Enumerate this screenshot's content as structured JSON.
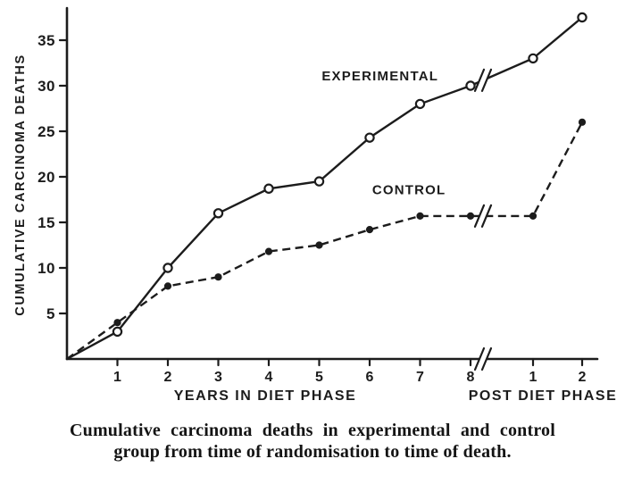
{
  "figure": {
    "background": "#ffffff",
    "ink": "#1c1c1c"
  },
  "chart_data": {
    "type": "line",
    "ylabel": "CUMULATIVE CARCINOMA DEATHS",
    "xlabel_diet": "YEARS IN DIET PHASE",
    "xlabel_post": "POST DIET PHASE",
    "ylim": [
      0,
      38
    ],
    "yticks": [
      5,
      10,
      15,
      20,
      25,
      30,
      35
    ],
    "diet_xticks": [
      1,
      2,
      3,
      4,
      5,
      6,
      7,
      8
    ],
    "post_xticks": [
      1,
      2
    ],
    "grid": false,
    "legend": "inline labels on curves",
    "axis_break": "double-slash break between diet year 8 and post year 1 on both curves and the x-axis",
    "series": [
      {
        "name": "EXPERIMENTAL",
        "line_style": "solid",
        "marker": "open-circle",
        "diet_x": [
          0,
          1,
          2,
          3,
          4,
          5,
          6,
          7,
          8
        ],
        "diet_y": [
          0,
          3,
          10,
          16,
          18.7,
          19.5,
          24.3,
          28,
          30
        ],
        "post_x": [
          1,
          2
        ],
        "post_y": [
          33,
          37.5
        ],
        "label_anchor": {
          "x_year": 5.05,
          "y_value": 30.6
        }
      },
      {
        "name": "CONTROL",
        "line_style": "dashed",
        "marker": "filled-circle",
        "diet_x": [
          0,
          1,
          2,
          3,
          4,
          5,
          6,
          7,
          8
        ],
        "diet_y": [
          0,
          4,
          8,
          9,
          11.8,
          12.5,
          14.2,
          15.7,
          15.7
        ],
        "post_x": [
          1,
          2
        ],
        "post_y": [
          15.7,
          26
        ],
        "label_anchor": {
          "x_year": 6.05,
          "y_value": 18.1
        }
      }
    ],
    "caption": {
      "line1": "Cumulative carcinoma deaths in experimental and control",
      "line2": "group from time of randomisation to time of death."
    }
  }
}
